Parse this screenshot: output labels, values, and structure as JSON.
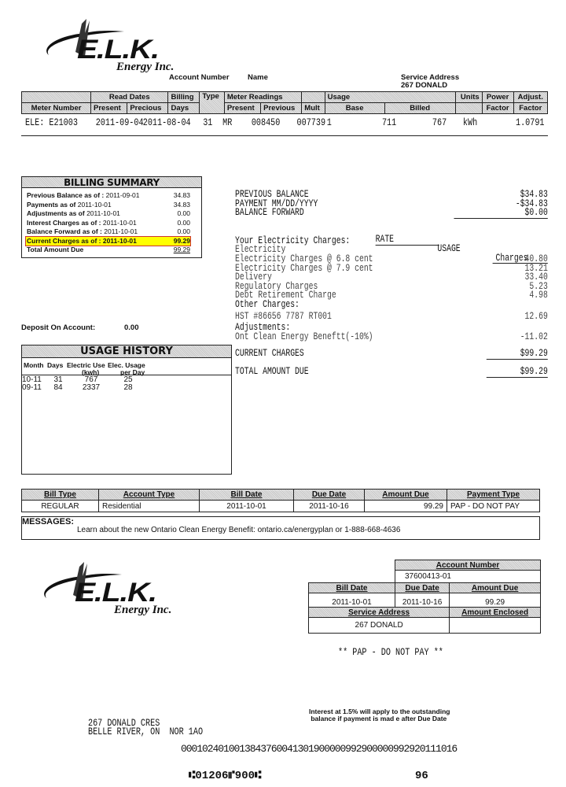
{
  "brand": {
    "name": "E.L.K.",
    "sub": "Energy Inc."
  },
  "header": {
    "account_number_label": "Account Number",
    "name_label": "Name",
    "service_address_label": "Service Address",
    "service_address": "267 DONALD"
  },
  "meter_table": {
    "group_headers": {
      "read_dates": "Read Dates",
      "billing": "Billing",
      "type": "Type",
      "meter_readings": "Meter Readings",
      "usage": "Usage",
      "units": "Units",
      "power": "Power",
      "adjust": "Adjust."
    },
    "sub_headers": {
      "meter_number": "Meter Number",
      "present": "Present",
      "previous_date": "Precious",
      "days": "Days",
      "present_reading": "Present",
      "previous_reading": "Previous",
      "mult": "Mult",
      "base": "Base",
      "billed": "Billed",
      "factor": "Factor",
      "adj_factor": "Factor"
    },
    "row": {
      "meter_number": "ELE: E21003",
      "present": "2011-09-04",
      "previous": "2011-08-04",
      "days": "31",
      "type": "MR",
      "present_reading": "008450",
      "previous_reading": "007739",
      "mult": "1",
      "base": "711",
      "billed": "767",
      "units": "kWh",
      "adjust_factor": "1.0791"
    }
  },
  "billing_summary": {
    "title": "BILLING SUMMARY",
    "rows": [
      {
        "label": "Previous Balance as of :",
        "date": "2011-09-01",
        "value": "34.83"
      },
      {
        "label": "Payments as of",
        "date": "2011-10-01",
        "value": "34.83"
      },
      {
        "label": "Adjustments as of",
        "date": "2011-10-01",
        "value": "0.00"
      },
      {
        "label": "Interest Charges as of :",
        "date": "2011-10-01",
        "value": "0.00"
      },
      {
        "label": "Balance Forward as of :",
        "date": "2011-10-01",
        "value": "0.00"
      },
      {
        "label": "Current Charges as of :",
        "date": "2011-10-01",
        "value": "99.29"
      },
      {
        "label": "Total Amount Due",
        "date": "",
        "value": "99.29"
      }
    ]
  },
  "deposit": {
    "label": "Deposit On Account:",
    "value": "0.00"
  },
  "charges": {
    "balance": [
      {
        "label": "PREVIOUS BALANCE",
        "amount": "$34.83"
      },
      {
        "label": "PAYMENT MM/DD/YYYY",
        "amount": "-$34.83"
      },
      {
        "label": "BALANCE FORWARD",
        "amount": "$0.00"
      }
    ],
    "col_rate": "RATE",
    "col_usage": "USAGE",
    "col_charges": "Charges",
    "your_charges": "Your Electricity Charges:",
    "lines": [
      {
        "label": "Electricity",
        "amount": ""
      },
      {
        "label": "Electricity Charges @ 6.8 cent",
        "amount": "40.80"
      },
      {
        "label": "Electricity Charges @ 7.9 cent",
        "amount": "13.21"
      },
      {
        "label": "Delivery",
        "amount": "33.40"
      },
      {
        "label": "Regulatory Charges",
        "amount": "5.23"
      },
      {
        "label": "Debt Retirement Charge",
        "amount": "4.98"
      }
    ],
    "other_label": "Other Charges:",
    "hst": {
      "label": "HST #86656 7787 RT001",
      "amount": "12.69"
    },
    "adjust_label": "Adjustments:",
    "adjust": {
      "label": "Ont Clean Energy Beneftt(-10%)",
      "amount": "-11.02"
    },
    "current": {
      "label": "CURRENT CHARGES",
      "amount": "$99.29"
    },
    "total": {
      "label": "TOTAL AMOUNT DUE",
      "amount": "$99.29"
    }
  },
  "usage_history": {
    "title": "USAGE HISTORY",
    "cols": [
      "Month",
      "Days",
      "Electric Use",
      "(kwh)",
      "Elec. Usage",
      "per Day"
    ],
    "rows": [
      {
        "month": "10-11",
        "days": "31",
        "use": "767",
        "per_day": "25"
      },
      {
        "month": "09-11",
        "days": "84",
        "use": "2337",
        "per_day": "28"
      }
    ]
  },
  "bill_table": {
    "headers": [
      "Bill Type",
      "Account Type",
      "Bill Date",
      "Due Date",
      "Amount Due",
      "Payment Type"
    ],
    "row": [
      "REGULAR",
      "Residential",
      "2011-10-01",
      "2011-10-16",
      "99.29",
      "PAP - DO NOT PAY"
    ]
  },
  "messages": {
    "label": "MESSAGES:",
    "text": "Learn about the new Ontario Clean Energy  Benefit: ontario.ca/energyplan or  1-888-668-4636"
  },
  "stub": {
    "account_number_label": "Account Number",
    "account_number": "37600413-01",
    "bill_date_label": "Bill Date",
    "due_date_label": "Due Date",
    "amount_due_label": "Amount Due",
    "bill_date": "2011-10-01",
    "due_date": "2011-10-16",
    "amount_due": "99.29",
    "service_address_label": "Service Address",
    "amount_enclosed_label": "Amount Enclosed",
    "service_address": "267 DONALD"
  },
  "pap_notice": "** PAP - DO NOT PAY **",
  "interest_notice": [
    "Interest at 1.5% will apply to the outstanding",
    " balance if payment is mad e after Due Date"
  ],
  "mailing_address": [
    "267 DONALD CRES",
    "BELLE RIVER, ON  NOR 1AO"
  ],
  "scanline": "0001024010013843760041301900000992900000992920111016",
  "micr": "⑆01206⑈900⑆",
  "page_code": "96"
}
